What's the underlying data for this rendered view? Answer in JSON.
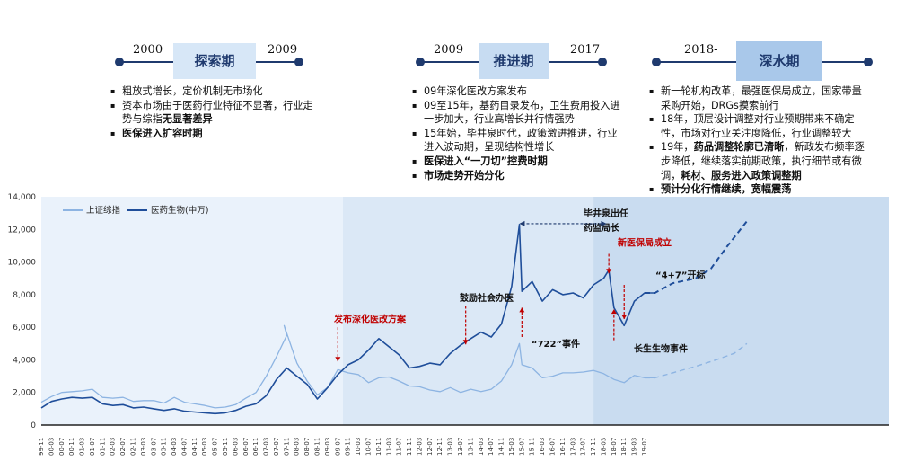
{
  "phases": [
    {
      "start": "2000",
      "end": "2009",
      "name": "探索期",
      "bullets": [
        {
          "parts": [
            {
              "t": "粗放式增长，定价机制无市场化",
              "b": false
            }
          ]
        },
        {
          "parts": [
            {
              "t": "资本市场由于医药行业特征不显著，行业走势与综指",
              "b": false
            },
            {
              "t": "无显著差异",
              "b": true
            }
          ]
        },
        {
          "parts": [
            {
              "t": "医保进入扩容时期",
              "b": true
            }
          ]
        }
      ]
    },
    {
      "start": "2009",
      "end": "2017",
      "name": "推进期",
      "bullets": [
        {
          "parts": [
            {
              "t": "09年深化医改方案发布",
              "b": false
            }
          ]
        },
        {
          "parts": [
            {
              "t": "09至15年，基药目录发布，卫生费用投入进一步加大，行业高增长并行情强势",
              "b": false
            }
          ]
        },
        {
          "parts": [
            {
              "t": "15年始，毕井泉时代，政策激进推进，行业进入波动期，呈现结构性增长",
              "b": false
            }
          ]
        },
        {
          "parts": [
            {
              "t": "医保进入“一刀切”控费时期",
              "b": true
            }
          ]
        },
        {
          "parts": [
            {
              "t": "市场走势开始分化",
              "b": true
            }
          ]
        }
      ]
    },
    {
      "start": "2018-",
      "end": "",
      "name": "深水期",
      "bullets": [
        {
          "parts": [
            {
              "t": "新一轮机构改革，最强医保局成立，国家带量采购开始，DRGs摸索前行",
              "b": false
            }
          ]
        },
        {
          "parts": [
            {
              "t": "18年，顶层设计调整对行业预期带来不确定性，市场对行业关注度降低，行业调整较大",
              "b": false
            }
          ]
        },
        {
          "parts": [
            {
              "t": "19年，",
              "b": false
            },
            {
              "t": "药品调整轮廓已清晰",
              "b": true
            },
            {
              "t": "，新政发布频率逐步降低，继续落实前期政策，执行细节或有微调，",
              "b": false
            },
            {
              "t": "耗材、服务进入政策调整期",
              "b": true
            }
          ]
        },
        {
          "parts": [
            {
              "t": "预计分化行情继续，宽幅震荡",
              "b": true
            }
          ]
        }
      ]
    }
  ],
  "chart_data": {
    "type": "line",
    "legend_position": "top-left",
    "ylim": [
      0,
      14000
    ],
    "y_ticks": [
      "0",
      "2,000",
      "4,000",
      "6,000",
      "8,000",
      "10,000",
      "12,000",
      "14,000"
    ],
    "x_ticks": [
      "99-11",
      "00-03",
      "00-07",
      "00-11",
      "01-03",
      "01-07",
      "01-11",
      "02-03",
      "02-07",
      "02-11",
      "03-03",
      "03-07",
      "03-11",
      "04-03",
      "04-07",
      "04-11",
      "05-03",
      "05-07",
      "05-11",
      "06-03",
      "06-07",
      "06-11",
      "07-03",
      "07-07",
      "07-11",
      "08-03",
      "08-07",
      "08-11",
      "09-03",
      "09-07",
      "09-11",
      "10-03",
      "10-07",
      "10-11",
      "11-03",
      "11-07",
      "11-11",
      "12-03",
      "12-07",
      "12-11",
      "13-03",
      "13-07",
      "13-11",
      "14-03",
      "14-07",
      "14-11",
      "15-03",
      "15-07",
      "15-11",
      "16-03",
      "16-07",
      "16-11",
      "17-03",
      "17-07",
      "17-11",
      "18-03",
      "18-07",
      "18-11",
      "19-03",
      "19-07"
    ],
    "series": [
      {
        "name": "上证综指",
        "color": "#8db4e2",
        "points": [
          [
            "99-11",
            1400
          ],
          [
            "00-03",
            1750
          ],
          [
            "00-07",
            2000
          ],
          [
            "00-11",
            2050
          ],
          [
            "01-03",
            2100
          ],
          [
            "01-07",
            2200
          ],
          [
            "01-11",
            1700
          ],
          [
            "02-03",
            1650
          ],
          [
            "02-07",
            1700
          ],
          [
            "02-11",
            1450
          ],
          [
            "03-03",
            1500
          ],
          [
            "03-07",
            1500
          ],
          [
            "03-11",
            1350
          ],
          [
            "04-03",
            1700
          ],
          [
            "04-07",
            1400
          ],
          [
            "04-11",
            1300
          ],
          [
            "05-03",
            1200
          ],
          [
            "05-07",
            1050
          ],
          [
            "05-11",
            1100
          ],
          [
            "06-03",
            1250
          ],
          [
            "06-07",
            1650
          ],
          [
            "06-11",
            2000
          ],
          [
            "07-03",
            3000
          ],
          [
            "07-07",
            4200
          ],
          [
            "07-11",
            5500
          ],
          [
            "07-10",
            6100
          ],
          [
            "08-03",
            3800
          ],
          [
            "08-07",
            2700
          ],
          [
            "08-11",
            1850
          ],
          [
            "09-03",
            2300
          ],
          [
            "09-07",
            3400
          ],
          [
            "09-11",
            3200
          ],
          [
            "10-03",
            3100
          ],
          [
            "10-07",
            2600
          ],
          [
            "10-11",
            2900
          ],
          [
            "11-03",
            2950
          ],
          [
            "11-07",
            2700
          ],
          [
            "11-11",
            2400
          ],
          [
            "12-03",
            2350
          ],
          [
            "12-07",
            2150
          ],
          [
            "12-11",
            2050
          ],
          [
            "13-03",
            2300
          ],
          [
            "13-07",
            2000
          ],
          [
            "13-11",
            2200
          ],
          [
            "14-03",
            2050
          ],
          [
            "14-07",
            2200
          ],
          [
            "14-11",
            2700
          ],
          [
            "15-03",
            3700
          ],
          [
            "15-06",
            5000
          ],
          [
            "15-07",
            3700
          ],
          [
            "15-11",
            3500
          ],
          [
            "16-03",
            2900
          ],
          [
            "16-07",
            3000
          ],
          [
            "16-11",
            3200
          ],
          [
            "17-03",
            3200
          ],
          [
            "17-07",
            3250
          ],
          [
            "17-11",
            3350
          ],
          [
            "18-03",
            3150
          ],
          [
            "18-07",
            2800
          ],
          [
            "18-11",
            2600
          ],
          [
            "19-03",
            3050
          ],
          [
            "19-07",
            2900
          ],
          [
            "19-11",
            2900
          ]
        ]
      },
      {
        "name": "医药生物(中万)",
        "color": "#1f4e9a",
        "points": [
          [
            "99-11",
            1050
          ],
          [
            "00-03",
            1450
          ],
          [
            "00-07",
            1600
          ],
          [
            "00-11",
            1700
          ],
          [
            "01-03",
            1650
          ],
          [
            "01-07",
            1700
          ],
          [
            "01-11",
            1300
          ],
          [
            "02-03",
            1200
          ],
          [
            "02-07",
            1250
          ],
          [
            "02-11",
            1050
          ],
          [
            "03-03",
            1100
          ],
          [
            "03-07",
            1000
          ],
          [
            "03-11",
            900
          ],
          [
            "04-03",
            1000
          ],
          [
            "04-07",
            850
          ],
          [
            "04-11",
            800
          ],
          [
            "05-03",
            750
          ],
          [
            "05-07",
            700
          ],
          [
            "05-11",
            750
          ],
          [
            "06-03",
            900
          ],
          [
            "06-07",
            1150
          ],
          [
            "06-11",
            1300
          ],
          [
            "07-03",
            1800
          ],
          [
            "07-07",
            2800
          ],
          [
            "07-11",
            3500
          ],
          [
            "08-03",
            3000
          ],
          [
            "08-07",
            2500
          ],
          [
            "08-11",
            1600
          ],
          [
            "09-03",
            2300
          ],
          [
            "09-07",
            3100
          ],
          [
            "09-11",
            3700
          ],
          [
            "10-03",
            4000
          ],
          [
            "10-07",
            4600
          ],
          [
            "10-11",
            5300
          ],
          [
            "11-03",
            4800
          ],
          [
            "11-07",
            4300
          ],
          [
            "11-11",
            3500
          ],
          [
            "12-03",
            3600
          ],
          [
            "12-07",
            3800
          ],
          [
            "12-11",
            3700
          ],
          [
            "13-03",
            4400
          ],
          [
            "13-07",
            4900
          ],
          [
            "13-11",
            5300
          ],
          [
            "14-03",
            5700
          ],
          [
            "14-07",
            5400
          ],
          [
            "14-11",
            6200
          ],
          [
            "15-03",
            8500
          ],
          [
            "15-06",
            12300
          ],
          [
            "15-07",
            8200
          ],
          [
            "15-11",
            8800
          ],
          [
            "16-03",
            7600
          ],
          [
            "16-07",
            8300
          ],
          [
            "16-11",
            8000
          ],
          [
            "17-03",
            8100
          ],
          [
            "17-07",
            7800
          ],
          [
            "17-11",
            8600
          ],
          [
            "18-03",
            9000
          ],
          [
            "18-05",
            9500
          ],
          [
            "18-07",
            7200
          ],
          [
            "18-11",
            6100
          ],
          [
            "19-03",
            7600
          ],
          [
            "19-07",
            8100
          ],
          [
            "19-11",
            8100
          ]
        ]
      }
    ],
    "forecast": [
      {
        "name": "上证综指",
        "points": [
          [
            "19-07",
            2900
          ],
          [
            "19-11",
            2900
          ],
          [
            "20-06",
            3200
          ],
          [
            "21-03",
            3600
          ],
          [
            "21-11",
            4000
          ],
          [
            "22-06",
            4400
          ],
          [
            "22-11",
            5000
          ]
        ]
      },
      {
        "name": "医药生物(中万)",
        "points": [
          [
            "19-07",
            8100
          ],
          [
            "19-11",
            8100
          ],
          [
            "20-06",
            8700
          ],
          [
            "21-03",
            9000
          ],
          [
            "21-09",
            9600
          ],
          [
            "22-03",
            10900
          ],
          [
            "22-11",
            12500
          ]
        ]
      }
    ],
    "annotations": [
      {
        "text": "发布深化医改方案",
        "at": [
          "09-07",
          4100
        ],
        "color": "red"
      },
      {
        "text": "鼓励社会办医",
        "at": [
          "13-09",
          4700
        ],
        "color": "dark"
      },
      {
        "text": "“722”事件",
        "at": [
          "15-07",
          3900
        ],
        "color": "dark"
      },
      {
        "text": "毕井泉出任",
        "line2": "药监局长",
        "color": "dark"
      },
      {
        "text": "新医保局成立",
        "at": [
          "18-05",
          9300
        ],
        "color": "red"
      },
      {
        "text": "“4+7”开标",
        "at": [
          "18-11",
          6200
        ],
        "color": "dark"
      },
      {
        "text": "长生生物事件",
        "at": [
          "18-07",
          6800
        ],
        "color": "dark"
      }
    ]
  }
}
